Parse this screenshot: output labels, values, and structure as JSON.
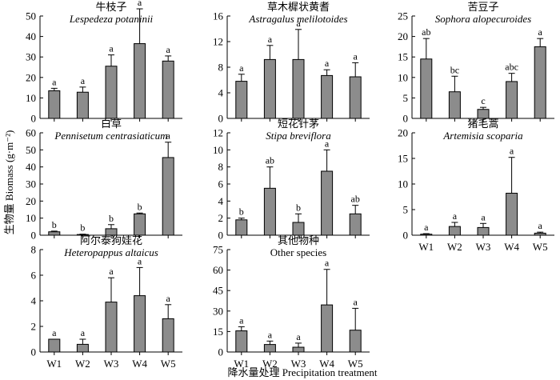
{
  "figure": {
    "ylabel": "生物量 Biomass (g·m⁻²)",
    "xlabel": "降水量处理 Precipitation treatment"
  },
  "colors": {
    "bar_fill": "#8c8c8c",
    "bar_stroke": "#000000"
  },
  "chart_data": [
    {
      "type": "bar",
      "title_cn": "牛枝子",
      "title_sp": "Lespedeza potaninii",
      "title_italic": true,
      "categories": [
        "W1",
        "W2",
        "W3",
        "W4",
        "W5"
      ],
      "values": [
        13.5,
        12.8,
        25.5,
        36.5,
        28
      ],
      "errors": [
        1.2,
        2.5,
        5.5,
        17,
        2.5
      ],
      "sig": [
        "a",
        "a",
        "a",
        "a",
        "a"
      ],
      "ylim": [
        0,
        50
      ],
      "yticks": [
        "0",
        "10",
        "20",
        "30",
        "40",
        "50"
      ],
      "show_xlabels": false
    },
    {
      "type": "bar",
      "title_cn": "草木樨状黄耆",
      "title_sp": "Astragalus melilotoides",
      "title_italic": true,
      "categories": [
        "W1",
        "W2",
        "W3",
        "W4",
        "W5"
      ],
      "values": [
        5.8,
        9.2,
        9.2,
        6.7,
        6.5
      ],
      "errors": [
        1.1,
        2.2,
        4.7,
        0.9,
        2.2
      ],
      "sig": [
        "a",
        "a",
        "a",
        "a",
        "a"
      ],
      "ylim": [
        0,
        16
      ],
      "yticks": [
        "0",
        "4",
        "8",
        "12",
        "16"
      ],
      "show_xlabels": false
    },
    {
      "type": "bar",
      "title_cn": "苦豆子",
      "title_sp": "Sophora alopecuroides",
      "title_italic": true,
      "categories": [
        "W1",
        "W2",
        "W3",
        "W4",
        "W5"
      ],
      "values": [
        14.5,
        6.5,
        2.2,
        9,
        17.5
      ],
      "errors": [
        5,
        3.8,
        0.5,
        2,
        2
      ],
      "sig": [
        "ab",
        "bc",
        "c",
        "abc",
        "a"
      ],
      "ylim": [
        0,
        25
      ],
      "yticks": [
        "0",
        "5",
        "10",
        "15",
        "20",
        "25"
      ],
      "show_xlabels": false
    },
    {
      "type": "bar",
      "title_cn": "白草",
      "title_sp": "Pennisetum centrasiaticum",
      "title_italic": true,
      "categories": [
        "W1",
        "W2",
        "W3",
        "W4",
        "W5"
      ],
      "values": [
        2,
        0.4,
        3.8,
        12.5,
        45.5
      ],
      "errors": [
        0.4,
        0.2,
        2.4,
        0.5,
        9
      ],
      "sig": [
        "b",
        "b",
        "b",
        "b",
        "a"
      ],
      "ylim": [
        0,
        60
      ],
      "yticks": [
        "0",
        "10",
        "20",
        "30",
        "40",
        "50",
        "60"
      ],
      "show_xlabels": false
    },
    {
      "type": "bar",
      "title_cn": "短花针茅",
      "title_sp": "Stipa breviflora",
      "title_italic": true,
      "categories": [
        "W1",
        "W2",
        "W3",
        "W4",
        "W5"
      ],
      "values": [
        1.8,
        5.5,
        1.5,
        7.5,
        2.5
      ],
      "errors": [
        0.2,
        2.5,
        1,
        2.5,
        1
      ],
      "sig": [
        "b",
        "ab",
        "b",
        "a",
        "ab"
      ],
      "ylim": [
        0,
        12
      ],
      "yticks": [
        "0",
        "2",
        "4",
        "6",
        "8",
        "10",
        "12"
      ],
      "show_xlabels": false
    },
    {
      "type": "bar",
      "title_cn": "猪毛蒿",
      "title_sp": "Artemisia scoparia",
      "title_italic": true,
      "categories": [
        "W1",
        "W2",
        "W3",
        "W4",
        "W5"
      ],
      "values": [
        0.2,
        1.7,
        1.5,
        8.2,
        0.4
      ],
      "errors": [
        0.1,
        0.8,
        0.8,
        7,
        0.2
      ],
      "sig": [
        "a",
        "a",
        "a",
        "a",
        "a"
      ],
      "ylim": [
        0,
        20
      ],
      "yticks": [
        "0",
        "5",
        "10",
        "15",
        "20"
      ],
      "show_xlabels": true
    },
    {
      "type": "bar",
      "title_cn": "阿尔泰狗娃花",
      "title_sp": "Heteropappus altaicus",
      "title_italic": true,
      "categories": [
        "W1",
        "W2",
        "W3",
        "W4",
        "W5"
      ],
      "values": [
        1,
        0.6,
        3.9,
        4.4,
        2.6
      ],
      "errors": [
        0,
        0.4,
        1.9,
        2.2,
        1.1
      ],
      "sig": [
        "a",
        "a",
        "a",
        "a",
        "a"
      ],
      "ylim": [
        0,
        8
      ],
      "yticks": [
        "0",
        "2",
        "4",
        "6",
        "8"
      ],
      "show_xlabels": true
    },
    {
      "type": "bar",
      "title_cn": "其他物种",
      "title_sp": "Other species",
      "title_italic": false,
      "categories": [
        "W1",
        "W2",
        "W3",
        "W4",
        "W5"
      ],
      "values": [
        15.5,
        5.5,
        3.5,
        34.5,
        16
      ],
      "errors": [
        3,
        2.5,
        3,
        26,
        16
      ],
      "sig": [
        "a",
        "a",
        "a",
        "a",
        "a"
      ],
      "ylim": [
        0,
        75
      ],
      "yticks": [
        "0",
        "15",
        "30",
        "45",
        "60",
        "75"
      ],
      "show_xlabels": true
    }
  ]
}
